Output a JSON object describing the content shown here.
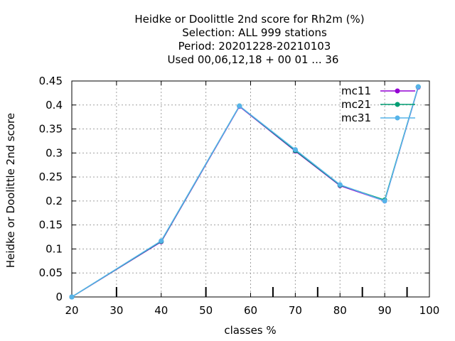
{
  "chart_data": {
    "type": "line",
    "title_lines": [
      "Heidke or Doolittle 2nd score  for Rh2m (%)",
      "Selection: ALL    999 stations",
      "Period: 20201228-20210103",
      "Used  00,06,12,18 + 00 01 ... 36"
    ],
    "xlabel": "classes %",
    "ylabel": "Heidke or Doolittle 2nd score",
    "xlim": [
      20,
      100
    ],
    "ylim": [
      0,
      0.45
    ],
    "xticks": [
      20,
      30,
      40,
      50,
      60,
      70,
      80,
      90,
      100
    ],
    "xtick_labels": [
      "20",
      "30",
      "40",
      "50",
      "60",
      "70",
      "80",
      "90",
      "100"
    ],
    "yticks": [
      0,
      0.05,
      0.1,
      0.15,
      0.2,
      0.25,
      0.3,
      0.35,
      0.4,
      0.45
    ],
    "ytick_labels": [
      "0",
      "0.05",
      "0.1",
      "0.15",
      "0.2",
      "0.25",
      "0.3",
      "0.35",
      "0.4",
      "0.45"
    ],
    "bottom_extra_ticks": [
      30,
      50,
      65,
      75,
      85,
      95
    ],
    "grid": true,
    "legend_position": "top-right",
    "x": [
      20,
      40,
      57.5,
      70,
      80,
      90,
      97.5
    ],
    "series": [
      {
        "name": "mc11",
        "color": "#9400d3",
        "values": [
          0.0,
          0.115,
          0.397,
          0.304,
          0.232,
          0.2,
          0.437
        ]
      },
      {
        "name": "mc21",
        "color": "#009e73",
        "values": [
          0.0,
          0.116,
          0.398,
          0.305,
          0.233,
          0.202,
          0.438
        ]
      },
      {
        "name": "mc31",
        "color": "#56b4e9",
        "values": [
          0.0,
          0.117,
          0.398,
          0.307,
          0.234,
          0.2,
          0.438
        ]
      }
    ]
  }
}
